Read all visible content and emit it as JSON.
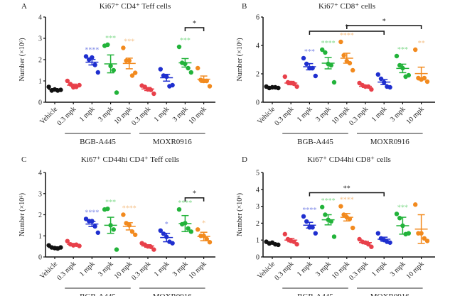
{
  "figure": {
    "groups": [
      "Vehicle",
      "0.3 mpk",
      "1 mpk",
      "3 mpk",
      "10 mpk",
      "0.3 mpk",
      "1 mpk",
      "3 mpk",
      "10 mpk"
    ],
    "group_colors": [
      "#111111",
      "#e8404a",
      "#1f2fcf",
      "#22b33a",
      "#f28a1e",
      "#e8404a",
      "#1f2fcf",
      "#22b33a",
      "#f28a1e"
    ],
    "sig_colors": [
      "#111111",
      "#f08a90",
      "#7b86e6",
      "#7fd98a",
      "#f5bf85",
      "#f08a90",
      "#7b86e6",
      "#7fd98a",
      "#f5bf85"
    ],
    "treatment_labels": [
      "BGB-A445",
      "MOXR0916"
    ]
  },
  "chart_data": [
    {
      "type": "scatter",
      "panel": "A",
      "title": "Ki67⁺ CD4⁺ Teff cells",
      "ylabel": "Number (×10⁶)",
      "ylim": [
        0,
        4
      ],
      "yticks": [
        "0",
        "1",
        "2",
        "3",
        "4"
      ],
      "categories": [
        "Vehicle",
        "0.3 mpk",
        "1 mpk",
        "3 mpk",
        "10 mpk",
        "0.3 mpk",
        "1 mpk",
        "3 mpk",
        "10 mpk"
      ],
      "points": [
        [
          0.72,
          0.55,
          0.6,
          0.55,
          0.58
        ],
        [
          1.0,
          0.85,
          0.7,
          0.72,
          0.8
        ],
        [
          2.15,
          2.0,
          2.1,
          1.75,
          1.4
        ],
        [
          2.65,
          2.7,
          1.7,
          1.5,
          0.45
        ],
        [
          2.55,
          1.95,
          1.95,
          1.25,
          1.38
        ],
        [
          0.78,
          0.72,
          0.6,
          0.58,
          0.4
        ],
        [
          1.55,
          1.25,
          1.2,
          0.75,
          0.8
        ],
        [
          2.6,
          1.85,
          1.8,
          1.6,
          1.4
        ],
        [
          1.6,
          1.05,
          1.0,
          1.0,
          0.75
        ]
      ],
      "mean": [
        0.6,
        0.8,
        1.88,
        1.8,
        1.82,
        0.62,
        1.15,
        1.85,
        1.08
      ],
      "sem": [
        0.04,
        0.05,
        0.13,
        0.42,
        0.25,
        0.07,
        0.16,
        0.2,
        0.15
      ],
      "sig_stars": [
        "",
        "",
        "****",
        "***",
        "***",
        "",
        "",
        "***",
        ""
      ],
      "brackets": [
        {
          "from": 7,
          "to": 8,
          "label": "*",
          "level": 3.5
        }
      ]
    },
    {
      "type": "scatter",
      "panel": "B",
      "title": "Ki67⁺ CD8⁺ cells",
      "ylabel": "Number (×10⁶)",
      "ylim": [
        0,
        6
      ],
      "yticks": [
        "0",
        "2",
        "4",
        "6"
      ],
      "categories": [
        "Vehicle",
        "0.3 mpk",
        "1 mpk",
        "3 mpk",
        "10 mpk",
        "0.3 mpk",
        "1 mpk",
        "3 mpk",
        "10 mpk"
      ],
      "points": [
        [
          1.1,
          1.0,
          1.05,
          1.05,
          1.0
        ],
        [
          1.8,
          1.4,
          1.35,
          1.3,
          1.1
        ],
        [
          3.1,
          2.7,
          2.4,
          2.4,
          1.85
        ],
        [
          3.7,
          3.5,
          2.7,
          2.6,
          1.4
        ],
        [
          4.25,
          3.3,
          2.9,
          2.75,
          2.25
        ],
        [
          1.35,
          1.2,
          1.1,
          1.1,
          0.9
        ],
        [
          1.95,
          1.65,
          1.4,
          1.1,
          1.05
        ],
        [
          3.25,
          2.6,
          2.4,
          1.8,
          1.9
        ],
        [
          3.7,
          1.7,
          1.6,
          1.7,
          1.45
        ]
      ],
      "mean": [
        1.03,
        1.35,
        2.5,
        2.75,
        3.1,
        1.12,
        1.42,
        2.38,
        2.02
      ],
      "sem": [
        0.03,
        0.12,
        0.22,
        0.4,
        0.35,
        0.08,
        0.18,
        0.3,
        0.45
      ],
      "sig_stars": [
        "",
        "",
        "***",
        "****",
        "****",
        "",
        "",
        "***",
        "**"
      ],
      "brackets": [
        {
          "from": 2,
          "to": 6,
          "label": "*",
          "level": 5.0
        },
        {
          "from": 4,
          "to": 8,
          "label": "*",
          "level": 5.4
        }
      ]
    },
    {
      "type": "scatter",
      "panel": "C",
      "title": "Ki67⁺ CD44hi CD4⁺ Teff cells",
      "ylabel": "Number (×10⁶)",
      "ylim": [
        0,
        4
      ],
      "yticks": [
        "0",
        "1",
        "2",
        "3",
        "4"
      ],
      "categories": [
        "Vehicle",
        "0.3 mpk",
        "1 mpk",
        "3 mpk",
        "10 mpk",
        "0.3 mpk",
        "1 mpk",
        "3 mpk",
        "10 mpk"
      ],
      "points": [
        [
          0.55,
          0.45,
          0.42,
          0.4,
          0.45
        ],
        [
          0.75,
          0.6,
          0.55,
          0.58,
          0.52
        ],
        [
          1.8,
          1.7,
          1.7,
          1.45,
          1.15
        ],
        [
          2.25,
          2.28,
          1.5,
          1.3,
          0.35
        ],
        [
          2.0,
          1.6,
          1.5,
          1.2,
          1.05
        ],
        [
          0.65,
          0.58,
          0.5,
          0.48,
          0.35
        ],
        [
          1.25,
          1.1,
          0.95,
          0.72,
          0.65
        ],
        [
          2.25,
          1.55,
          1.6,
          1.35,
          1.2
        ],
        [
          1.3,
          1.0,
          1.0,
          0.85,
          0.7
        ]
      ],
      "mean": [
        0.45,
        0.6,
        1.56,
        1.5,
        1.45,
        0.52,
        0.92,
        1.58,
        0.97
      ],
      "sem": [
        0.03,
        0.04,
        0.12,
        0.38,
        0.17,
        0.06,
        0.2,
        0.38,
        0.2
      ],
      "sig_stars": [
        "",
        "",
        "****",
        "***",
        "****",
        "",
        "*",
        "****",
        "*"
      ],
      "brackets": [
        {
          "from": 7,
          "to": 8,
          "label": "*",
          "level": 2.8
        }
      ]
    },
    {
      "type": "scatter",
      "panel": "D",
      "title": "Ki67⁺ CD44hi CD8⁺ cells",
      "ylabel": "Number (×10⁶)",
      "ylim": [
        0,
        5
      ],
      "yticks": [
        "0",
        "1",
        "2",
        "3",
        "4",
        "5"
      ],
      "categories": [
        "Vehicle",
        "0.3 mpk",
        "1 mpk",
        "3 mpk",
        "10 mpk",
        "0.3 mpk",
        "1 mpk",
        "3 mpk",
        "10 mpk"
      ],
      "points": [
        [
          0.9,
          0.8,
          0.85,
          0.75,
          0.72
        ],
        [
          1.35,
          1.05,
          0.95,
          0.9,
          0.75
        ],
        [
          2.4,
          2.1,
          1.75,
          1.75,
          1.4
        ],
        [
          2.95,
          2.5,
          2.2,
          2.1,
          1.2
        ],
        [
          3.0,
          2.5,
          2.35,
          2.25,
          1.72
        ],
        [
          1.05,
          0.9,
          0.85,
          0.75,
          0.6
        ],
        [
          1.4,
          1.1,
          1.0,
          0.9,
          0.85
        ],
        [
          2.55,
          2.3,
          1.85,
          1.35,
          1.4
        ],
        [
          3.1,
          1.4,
          1.4,
          1.1,
          0.95
        ]
      ],
      "mean": [
        0.8,
        1.0,
        1.88,
        2.2,
        2.35,
        0.85,
        1.05,
        1.85,
        1.65
      ],
      "sem": [
        0.03,
        0.1,
        0.17,
        0.3,
        0.22,
        0.07,
        0.12,
        0.5,
        0.85
      ],
      "sig_stars": [
        "",
        "",
        "****",
        "****",
        "****",
        "",
        "",
        "***",
        ""
      ],
      "brackets": [
        {
          "from": 2,
          "to": 6,
          "label": "**",
          "level": 3.8
        }
      ]
    }
  ]
}
